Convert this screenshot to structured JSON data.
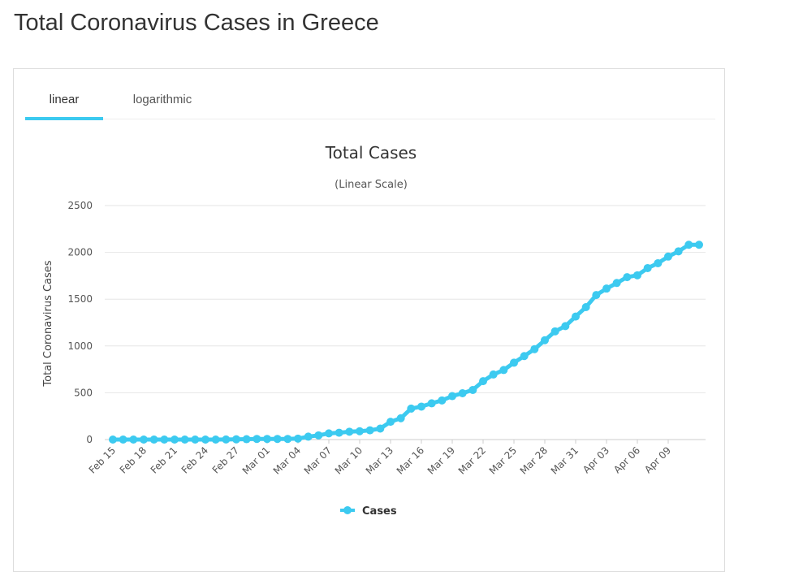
{
  "page": {
    "title": "Total Coronavirus Cases in Greece"
  },
  "tabs": [
    {
      "label": "linear",
      "active": true
    },
    {
      "label": "logarithmic",
      "active": false
    }
  ],
  "colors": {
    "series": "#3ccaf0",
    "grid": "#e6e6e6",
    "tab_underline": "#3ccaf0"
  },
  "chart_data": {
    "type": "line",
    "title": "Total Cases",
    "subtitle": "(Linear Scale)",
    "ylabel": "Total Coronavirus Cases",
    "xlabel": "",
    "ylim": [
      0,
      2500
    ],
    "yticks": [
      0,
      500,
      1000,
      1500,
      2000,
      2500
    ],
    "grid": true,
    "legend_position": "bottom-center",
    "categories": [
      "Feb 15",
      "Feb 16",
      "Feb 17",
      "Feb 18",
      "Feb 19",
      "Feb 20",
      "Feb 21",
      "Feb 22",
      "Feb 23",
      "Feb 24",
      "Feb 25",
      "Feb 26",
      "Feb 27",
      "Feb 28",
      "Feb 29",
      "Mar 01",
      "Mar 02",
      "Mar 03",
      "Mar 04",
      "Mar 05",
      "Mar 06",
      "Mar 07",
      "Mar 08",
      "Mar 09",
      "Mar 10",
      "Mar 11",
      "Mar 12",
      "Mar 13",
      "Mar 14",
      "Mar 15",
      "Mar 16",
      "Mar 17",
      "Mar 18",
      "Mar 19",
      "Mar 20",
      "Mar 21",
      "Mar 22",
      "Mar 23",
      "Mar 24",
      "Mar 25",
      "Mar 26",
      "Mar 27",
      "Mar 28",
      "Mar 29",
      "Mar 30",
      "Mar 31",
      "Apr 01",
      "Apr 02",
      "Apr 03",
      "Apr 04",
      "Apr 05",
      "Apr 06",
      "Apr 07",
      "Apr 08",
      "Apr 09",
      "Apr 10",
      "Apr 11",
      "Apr 12"
    ],
    "tick_labels": [
      "Feb 15",
      "Feb 18",
      "Feb 21",
      "Feb 24",
      "Feb 27",
      "Mar 01",
      "Mar 04",
      "Mar 07",
      "Mar 10",
      "Mar 13",
      "Mar 16",
      "Mar 19",
      "Mar 22",
      "Mar 25",
      "Mar 28",
      "Mar 31",
      "Apr 03",
      "Apr 06",
      "Apr 09"
    ],
    "series": [
      {
        "name": "Cases",
        "values": [
          0,
          0,
          0,
          0,
          0,
          0,
          0,
          0,
          0,
          0,
          0,
          1,
          3,
          4,
          7,
          7,
          7,
          7,
          10,
          31,
          45,
          66,
          73,
          84,
          89,
          99,
          117,
          190,
          228,
          331,
          352,
          387,
          418,
          464,
          495,
          530,
          624,
          695,
          743,
          821,
          892,
          966,
          1061,
          1156,
          1212,
          1314,
          1415,
          1544,
          1613,
          1673,
          1735,
          1755,
          1832,
          1884,
          1955,
          2011,
          2081,
          2081
        ]
      }
    ]
  }
}
